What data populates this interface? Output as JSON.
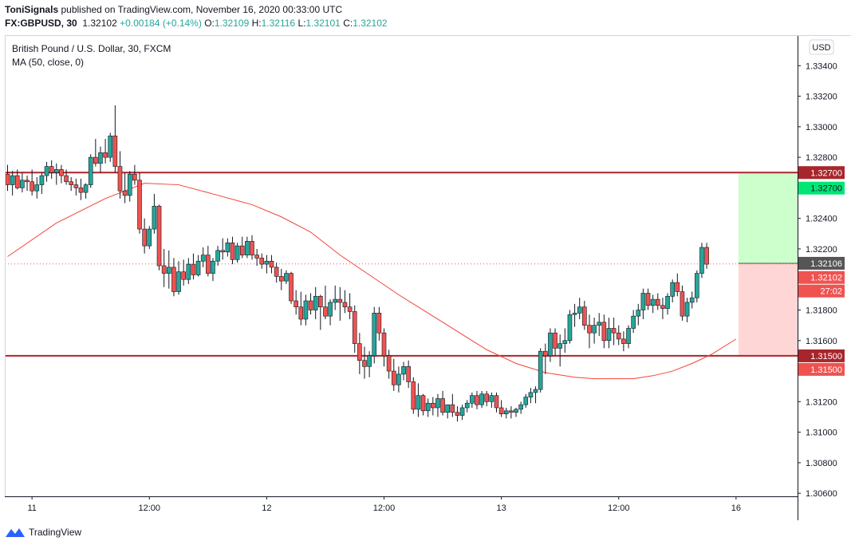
{
  "header": {
    "author": "ToniSignals",
    "published": "published on TradingView.com, November 16, 2020 00:33:00 UTC",
    "symbol": "FX:GBPUSD, 30",
    "last": "1.32102",
    "change": "+0.00184 (+0.14%)",
    "o_label": "O:",
    "o_value": "1.32109",
    "h_label": "H:",
    "h_value": "1.32116",
    "l_label": "L:",
    "l_value": "1.32101",
    "c_label": "C:",
    "c_value": "1.32102"
  },
  "legend": {
    "title": "British Pound / U.S. Dollar, 30, FXCM",
    "indicator": "MA (50, close, 0)"
  },
  "currency_button": "USD",
  "footer": {
    "brand": "TradingView"
  },
  "colors": {
    "up": "#26a69a",
    "down": "#ef5350",
    "ma": "#f44336",
    "level_line": "#a8262b",
    "target_zone": "#ccffcc",
    "stop_zone": "#ffd6d6"
  },
  "chart_data": {
    "type": "candlestick",
    "title": "British Pound / U.S. Dollar, 30, FXCM",
    "ylim": [
      1.3058,
      1.336
    ],
    "y_ticks": [
      "1.30600",
      "1.30800",
      "1.31000",
      "1.31200",
      "1.31400",
      "1.31600",
      "1.31800",
      "1.32000",
      "1.32200",
      "1.32400",
      "1.32600",
      "1.32800",
      "1.33000",
      "1.33200",
      "1.33400"
    ],
    "x_ticks": [
      {
        "label": "11",
        "bar": 5
      },
      {
        "label": "12:00",
        "bar": 29
      },
      {
        "label": "12",
        "bar": 53
      },
      {
        "label": "12:00",
        "bar": 77
      },
      {
        "label": "13",
        "bar": 101
      },
      {
        "label": "12:00",
        "bar": 125
      },
      {
        "label": "16",
        "bar": 149
      }
    ],
    "candles": [
      [
        1.3269,
        1.3275,
        1.3258,
        1.3262
      ],
      [
        1.3262,
        1.3271,
        1.3255,
        1.3268
      ],
      [
        1.3268,
        1.3272,
        1.3259,
        1.326
      ],
      [
        1.326,
        1.327,
        1.3257,
        1.3265
      ],
      [
        1.3265,
        1.3268,
        1.3258,
        1.3264
      ],
      [
        1.3264,
        1.3272,
        1.3255,
        1.3258
      ],
      [
        1.3258,
        1.3267,
        1.3253,
        1.3262
      ],
      [
        1.3262,
        1.327,
        1.3256,
        1.3268
      ],
      [
        1.3268,
        1.3277,
        1.3264,
        1.3274
      ],
      [
        1.3274,
        1.3278,
        1.3266,
        1.327
      ],
      [
        1.327,
        1.3276,
        1.3262,
        1.3272
      ],
      [
        1.3272,
        1.3275,
        1.3263,
        1.3268
      ],
      [
        1.3268,
        1.3272,
        1.3262,
        1.3264
      ],
      [
        1.3264,
        1.3267,
        1.3258,
        1.3262
      ],
      [
        1.3262,
        1.3266,
        1.3255,
        1.326
      ],
      [
        1.326,
        1.3266,
        1.3252,
        1.3257
      ],
      [
        1.3257,
        1.3263,
        1.3253,
        1.3262
      ],
      [
        1.3262,
        1.3282,
        1.326,
        1.328
      ],
      [
        1.328,
        1.3292,
        1.3274,
        1.3276
      ],
      [
        1.3276,
        1.3287,
        1.327,
        1.3283
      ],
      [
        1.3283,
        1.3292,
        1.3276,
        1.328
      ],
      [
        1.328,
        1.3296,
        1.3277,
        1.3294
      ],
      [
        1.3294,
        1.3314,
        1.327,
        1.3274
      ],
      [
        1.3274,
        1.3284,
        1.3253,
        1.3258
      ],
      [
        1.3258,
        1.327,
        1.325,
        1.3255
      ],
      [
        1.3255,
        1.3271,
        1.3251,
        1.3269
      ],
      [
        1.3269,
        1.3275,
        1.3262,
        1.3265
      ],
      [
        1.3265,
        1.327,
        1.323,
        1.3233
      ],
      [
        1.3233,
        1.324,
        1.3217,
        1.3222
      ],
      [
        1.3222,
        1.3235,
        1.322,
        1.3233
      ],
      [
        1.3233,
        1.3256,
        1.323,
        1.3248
      ],
      [
        1.3248,
        1.3249,
        1.3206,
        1.3209
      ],
      [
        1.3209,
        1.322,
        1.3195,
        1.3204
      ],
      [
        1.3204,
        1.3219,
        1.3194,
        1.3208
      ],
      [
        1.3208,
        1.3214,
        1.3189,
        1.3192
      ],
      [
        1.3192,
        1.3212,
        1.319,
        1.3205
      ],
      [
        1.3205,
        1.3213,
        1.3196,
        1.32
      ],
      [
        1.32,
        1.3214,
        1.3197,
        1.321
      ],
      [
        1.321,
        1.3217,
        1.32,
        1.3203
      ],
      [
        1.3203,
        1.3216,
        1.3202,
        1.3212
      ],
      [
        1.3212,
        1.3221,
        1.3208,
        1.3216
      ],
      [
        1.3216,
        1.3222,
        1.3202,
        1.3204
      ],
      [
        1.3204,
        1.3214,
        1.3199,
        1.3212
      ],
      [
        1.3212,
        1.3222,
        1.3209,
        1.3219
      ],
      [
        1.3219,
        1.3227,
        1.3213,
        1.3218
      ],
      [
        1.3218,
        1.3227,
        1.3215,
        1.3224
      ],
      [
        1.3224,
        1.3228,
        1.321,
        1.3213
      ],
      [
        1.3213,
        1.3224,
        1.3211,
        1.3222
      ],
      [
        1.3222,
        1.3228,
        1.3214,
        1.3216
      ],
      [
        1.3216,
        1.3228,
        1.3214,
        1.3225
      ],
      [
        1.3225,
        1.3229,
        1.3213,
        1.3216
      ],
      [
        1.3216,
        1.322,
        1.3209,
        1.3214
      ],
      [
        1.3214,
        1.3217,
        1.3207,
        1.321
      ],
      [
        1.321,
        1.3216,
        1.3204,
        1.3212
      ],
      [
        1.3212,
        1.3216,
        1.3204,
        1.3208
      ],
      [
        1.3208,
        1.3211,
        1.3198,
        1.3202
      ],
      [
        1.3202,
        1.3207,
        1.3193,
        1.3199
      ],
      [
        1.3199,
        1.3206,
        1.3197,
        1.3204
      ],
      [
        1.3204,
        1.3205,
        1.3184,
        1.3186
      ],
      [
        1.3186,
        1.3193,
        1.3177,
        1.3182
      ],
      [
        1.3182,
        1.3192,
        1.317,
        1.3174
      ],
      [
        1.3174,
        1.319,
        1.317,
        1.3186
      ],
      [
        1.3186,
        1.3191,
        1.3177,
        1.318
      ],
      [
        1.318,
        1.3195,
        1.3174,
        1.3189
      ],
      [
        1.3189,
        1.319,
        1.3167,
        1.3182
      ],
      [
        1.3182,
        1.3196,
        1.3174,
        1.3176
      ],
      [
        1.3176,
        1.3187,
        1.317,
        1.3185
      ],
      [
        1.3185,
        1.3196,
        1.318,
        1.3187
      ],
      [
        1.3187,
        1.3195,
        1.3173,
        1.3185
      ],
      [
        1.3185,
        1.3193,
        1.3178,
        1.3182
      ],
      [
        1.3182,
        1.3191,
        1.3174,
        1.3179
      ],
      [
        1.3179,
        1.3183,
        1.3152,
        1.3158
      ],
      [
        1.3158,
        1.3165,
        1.3138,
        1.3147
      ],
      [
        1.3147,
        1.3156,
        1.3135,
        1.3143
      ],
      [
        1.3143,
        1.3153,
        1.3136,
        1.315
      ],
      [
        1.315,
        1.3182,
        1.3145,
        1.3178
      ],
      [
        1.3178,
        1.3182,
        1.316,
        1.3165
      ],
      [
        1.3165,
        1.3168,
        1.3143,
        1.315
      ],
      [
        1.315,
        1.3154,
        1.3135,
        1.314
      ],
      [
        1.314,
        1.3148,
        1.3127,
        1.3131
      ],
      [
        1.3131,
        1.3143,
        1.3126,
        1.3138
      ],
      [
        1.3138,
        1.3146,
        1.3134,
        1.3143
      ],
      [
        1.3143,
        1.3147,
        1.3129,
        1.3133
      ],
      [
        1.3133,
        1.3136,
        1.3112,
        1.3115
      ],
      [
        1.3115,
        1.3132,
        1.311,
        1.3124
      ],
      [
        1.3124,
        1.3125,
        1.3111,
        1.3114
      ],
      [
        1.3114,
        1.3122,
        1.311,
        1.3119
      ],
      [
        1.3119,
        1.3123,
        1.3111,
        1.3116
      ],
      [
        1.3116,
        1.3125,
        1.311,
        1.3122
      ],
      [
        1.3122,
        1.3127,
        1.3111,
        1.3113
      ],
      [
        1.3113,
        1.3118,
        1.3109,
        1.3118
      ],
      [
        1.3118,
        1.3125,
        1.311,
        1.3113
      ],
      [
        1.3113,
        1.3117,
        1.3107,
        1.3111
      ],
      [
        1.3111,
        1.3118,
        1.3108,
        1.3116
      ],
      [
        1.3116,
        1.3121,
        1.3113,
        1.3119
      ],
      [
        1.3119,
        1.3126,
        1.3116,
        1.3124
      ],
      [
        1.3124,
        1.3127,
        1.3115,
        1.3118
      ],
      [
        1.3118,
        1.3127,
        1.3116,
        1.3125
      ],
      [
        1.3125,
        1.3127,
        1.3117,
        1.312
      ],
      [
        1.312,
        1.3126,
        1.3116,
        1.3124
      ],
      [
        1.3124,
        1.3126,
        1.3113,
        1.3116
      ],
      [
        1.3116,
        1.3121,
        1.311,
        1.3112
      ],
      [
        1.3112,
        1.3116,
        1.3109,
        1.3114
      ],
      [
        1.3114,
        1.3117,
        1.3109,
        1.3113
      ],
      [
        1.3113,
        1.3116,
        1.311,
        1.3115
      ],
      [
        1.3115,
        1.312,
        1.3112,
        1.3118
      ],
      [
        1.3118,
        1.3125,
        1.3116,
        1.3123
      ],
      [
        1.3123,
        1.3129,
        1.3119,
        1.3126
      ],
      [
        1.3126,
        1.313,
        1.3119,
        1.3128
      ],
      [
        1.3128,
        1.3155,
        1.3126,
        1.3153
      ],
      [
        1.3153,
        1.3158,
        1.3138,
        1.315
      ],
      [
        1.315,
        1.3168,
        1.3146,
        1.3165
      ],
      [
        1.3165,
        1.3168,
        1.315,
        1.3155
      ],
      [
        1.3155,
        1.3164,
        1.3143,
        1.3158
      ],
      [
        1.3158,
        1.3168,
        1.3152,
        1.316
      ],
      [
        1.316,
        1.318,
        1.3158,
        1.3177
      ],
      [
        1.3177,
        1.3184,
        1.3169,
        1.3178
      ],
      [
        1.3178,
        1.3188,
        1.3174,
        1.3182
      ],
      [
        1.3182,
        1.3186,
        1.3167,
        1.317
      ],
      [
        1.317,
        1.3177,
        1.3155,
        1.3165
      ],
      [
        1.3165,
        1.3175,
        1.3158,
        1.317
      ],
      [
        1.317,
        1.3178,
        1.3163,
        1.3172
      ],
      [
        1.3172,
        1.3177,
        1.3155,
        1.316
      ],
      [
        1.316,
        1.3175,
        1.3155,
        1.3168
      ],
      [
        1.3168,
        1.3175,
        1.3157,
        1.3165
      ],
      [
        1.3165,
        1.317,
        1.3157,
        1.3161
      ],
      [
        1.3161,
        1.3166,
        1.3153,
        1.3158
      ],
      [
        1.3158,
        1.317,
        1.3155,
        1.3168
      ],
      [
        1.3168,
        1.318,
        1.3165,
        1.3176
      ],
      [
        1.3176,
        1.3184,
        1.317,
        1.318
      ],
      [
        1.318,
        1.3194,
        1.3174,
        1.3191
      ],
      [
        1.3191,
        1.3194,
        1.318,
        1.3183
      ],
      [
        1.3183,
        1.319,
        1.3178,
        1.3187
      ],
      [
        1.3187,
        1.3191,
        1.318,
        1.3183
      ],
      [
        1.3183,
        1.3188,
        1.3174,
        1.3181
      ],
      [
        1.3181,
        1.3191,
        1.3177,
        1.3189
      ],
      [
        1.3189,
        1.32,
        1.3185,
        1.3198
      ],
      [
        1.3198,
        1.3204,
        1.3189,
        1.3192
      ],
      [
        1.3192,
        1.3196,
        1.3173,
        1.3176
      ],
      [
        1.3176,
        1.3188,
        1.3172,
        1.3185
      ],
      [
        1.3185,
        1.3192,
        1.3181,
        1.3188
      ],
      [
        1.3188,
        1.3206,
        1.3185,
        1.3204
      ],
      [
        1.3204,
        1.3224,
        1.3201,
        1.3221
      ],
      [
        1.3221,
        1.3224,
        1.3207,
        1.321
      ]
    ],
    "moving_average": [
      [
        0,
        1.3215
      ],
      [
        10,
        1.3237
      ],
      [
        20,
        1.3253
      ],
      [
        28,
        1.3263
      ],
      [
        35,
        1.3262
      ],
      [
        42,
        1.3256
      ],
      [
        50,
        1.3249
      ],
      [
        56,
        1.3241
      ],
      [
        62,
        1.3231
      ],
      [
        68,
        1.3216
      ],
      [
        74,
        1.3203
      ],
      [
        80,
        1.319
      ],
      [
        86,
        1.3178
      ],
      [
        92,
        1.3166
      ],
      [
        98,
        1.3154
      ],
      [
        104,
        1.3145
      ],
      [
        110,
        1.3139
      ],
      [
        116,
        1.3136
      ],
      [
        120,
        1.3135
      ],
      [
        124,
        1.3135
      ],
      [
        128,
        1.3135
      ],
      [
        132,
        1.3137
      ],
      [
        136,
        1.314
      ],
      [
        140,
        1.3145
      ],
      [
        144,
        1.3151
      ],
      [
        149,
        1.3161
      ]
    ],
    "horizontal_levels": [
      1.327,
      1.315
    ],
    "position": {
      "target": 1.327,
      "entry": 1.32106,
      "stop": 1.315,
      "start_bar": 149
    },
    "price_labels": [
      {
        "text": "1.32700",
        "price": 1.327,
        "bg": "#a8262b",
        "fg": "#ffffff"
      },
      {
        "text": "1.32700",
        "price": 1.32687,
        "offset": 1,
        "bg": "#00e676",
        "fg": "#131722"
      },
      {
        "text": "1.32106",
        "price": 1.32106,
        "bg": "#555555",
        "fg": "#ffffff"
      },
      {
        "text": "1.32102",
        "price": 1.32102,
        "offset": 1,
        "bg": "#ef5350",
        "fg": "#ffffff"
      },
      {
        "text": "27:02",
        "price": 1.32102,
        "offset": 2,
        "bg": "#ef5350",
        "fg": "#ffffff"
      },
      {
        "text": "1.31500",
        "price": 1.315,
        "bg": "#a8262b",
        "fg": "#ffffff"
      },
      {
        "text": "1.31500",
        "price": 1.315,
        "offset": 1,
        "bg": "#ef5350",
        "fg": "#ffffff"
      }
    ],
    "current_price": 1.32102
  }
}
